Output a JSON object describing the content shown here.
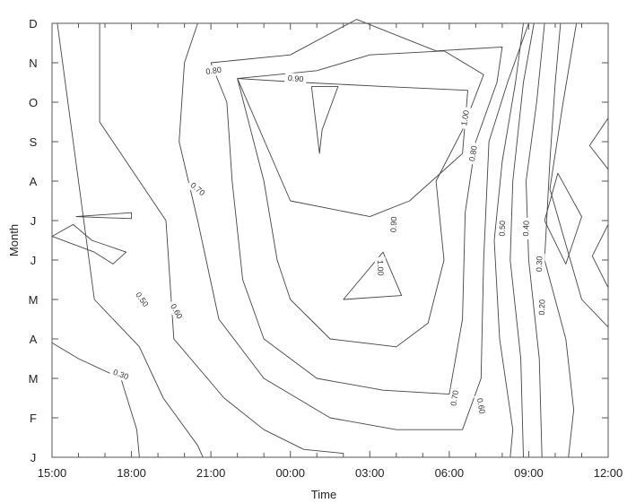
{
  "chart_data": {
    "type": "contour",
    "xlabel": "Time",
    "ylabel": "Month",
    "x_ticks": [
      "15:00",
      "18:00",
      "21:00",
      "00:00",
      "03:00",
      "06:00",
      "09:00",
      "12:00"
    ],
    "x_range": [
      0,
      21
    ],
    "y_ticks": [
      "J",
      "F",
      "M",
      "A",
      "M",
      "J",
      "J",
      "A",
      "S",
      "O",
      "N",
      "D"
    ],
    "y_range": [
      0,
      11
    ],
    "contours": [
      {
        "level": "0.30",
        "points": [
          [
            0,
            2.9
          ],
          [
            1,
            2.5
          ],
          [
            2.6,
            2
          ],
          [
            3.2,
            0.7
          ],
          [
            3.3,
            0
          ]
        ]
      },
      {
        "level": "0.50",
        "points": [
          [
            0.2,
            11
          ],
          [
            0.8,
            8
          ],
          [
            1.6,
            4
          ],
          [
            3.3,
            2.8
          ],
          [
            4.2,
            1.5
          ],
          [
            5.5,
            0.3
          ],
          [
            5.7,
            0
          ]
        ]
      },
      {
        "level": "0.60",
        "points": [
          [
            1.8,
            11
          ],
          [
            1.8,
            8.5
          ],
          [
            4.3,
            6
          ],
          [
            4.6,
            3
          ],
          [
            6.5,
            1.5
          ],
          [
            8,
            0.7
          ],
          [
            9.5,
            0.2
          ],
          [
            11,
            0.1
          ]
        ]
      },
      {
        "level": "0.70",
        "points": [
          [
            5.5,
            11
          ],
          [
            5,
            10
          ],
          [
            4.8,
            8
          ],
          [
            5.5,
            6
          ],
          [
            6.3,
            3.5
          ],
          [
            8,
            2
          ],
          [
            10.5,
            1
          ],
          [
            13,
            0.7
          ],
          [
            15.5,
            0.7
          ],
          [
            16.2,
            2
          ],
          [
            16.3,
            5
          ],
          [
            16.5,
            8
          ],
          [
            17.2,
            9.5
          ],
          [
            18,
            11
          ]
        ]
      },
      {
        "level": "0.80",
        "points": [
          [
            6,
            10
          ],
          [
            6.6,
            9
          ],
          [
            6.8,
            7
          ],
          [
            7.2,
            4.5
          ],
          [
            8,
            3
          ],
          [
            10,
            2
          ],
          [
            12.5,
            1.7
          ],
          [
            15,
            1.6
          ],
          [
            15.5,
            3.5
          ],
          [
            15.6,
            6.2
          ],
          [
            16,
            8
          ],
          [
            16.8,
            9.5
          ],
          [
            17,
            10.4
          ],
          [
            14.5,
            10.3
          ],
          [
            11.5,
            11.1
          ],
          [
            9,
            10.2
          ],
          [
            6,
            10
          ]
        ]
      },
      {
        "level": "0.90",
        "points": [
          [
            7,
            9.6
          ],
          [
            8,
            7
          ],
          [
            8.5,
            5
          ],
          [
            9,
            4
          ],
          [
            10.5,
            3
          ],
          [
            13,
            2.8
          ],
          [
            14.2,
            3.4
          ],
          [
            14.8,
            5
          ],
          [
            14.5,
            7
          ],
          [
            15.5,
            8.3
          ],
          [
            16.3,
            9.7
          ],
          [
            14.8,
            10.3
          ],
          [
            12,
            10.2
          ],
          [
            10,
            9.8
          ],
          [
            7,
            9.6
          ]
        ]
      },
      {
        "level": "1.00",
        "points": [
          [
            7,
            9.6
          ],
          [
            9,
            6.5
          ],
          [
            12,
            6.1
          ],
          [
            13.5,
            6.5
          ],
          [
            15.5,
            7.7
          ],
          [
            15.7,
            9.3
          ],
          [
            12.5,
            9.4
          ],
          [
            9.5,
            9.5
          ],
          [
            7,
            9.6
          ]
        ]
      },
      {
        "level": "1.00",
        "points": [
          [
            9.8,
            9.4
          ],
          [
            10.8,
            9.4
          ],
          [
            10.2,
            8.3
          ],
          [
            10.1,
            7.7
          ],
          [
            9.8,
            9.4
          ]
        ]
      },
      {
        "level": "1.00",
        "points": [
          [
            11,
            4
          ],
          [
            12.5,
            5.2
          ],
          [
            13.2,
            4.1
          ],
          [
            11,
            4
          ]
        ]
      },
      {
        "level": "0.60",
        "points": [
          [
            17.8,
            11
          ],
          [
            17.5,
            9.5
          ],
          [
            17,
            7.5
          ],
          [
            16.7,
            5.5
          ],
          [
            16.9,
            3
          ],
          [
            17.4,
            0.7
          ],
          [
            17.3,
            0
          ]
        ]
      },
      {
        "level": "0.50",
        "points": [
          [
            18.2,
            11
          ],
          [
            17.8,
            9.5
          ],
          [
            17.4,
            7
          ],
          [
            17.3,
            5
          ],
          [
            17.7,
            2.5
          ],
          [
            17.8,
            0
          ]
        ]
      },
      {
        "level": "0.40",
        "points": [
          [
            18.6,
            11
          ],
          [
            18.3,
            9
          ],
          [
            17.9,
            7
          ],
          [
            18,
            5
          ],
          [
            18.4,
            2.5
          ],
          [
            18.5,
            0
          ]
        ]
      },
      {
        "level": "0.30",
        "points": [
          [
            19.2,
            11
          ],
          [
            19,
            9.5
          ],
          [
            18.8,
            7.5
          ],
          [
            18.6,
            5
          ],
          [
            19.4,
            3
          ],
          [
            19.7,
            1.2
          ],
          [
            19.5,
            0
          ]
        ]
      },
      {
        "level": "0.20",
        "points": [
          [
            19.8,
            11
          ],
          [
            19.3,
            9
          ],
          [
            18.8,
            6.8
          ],
          [
            20,
            4
          ],
          [
            21,
            3.3
          ]
        ]
      },
      {
        "level": "",
        "points": [
          [
            18.6,
            6
          ],
          [
            19.1,
            7.2
          ],
          [
            20,
            6.1
          ],
          [
            19.4,
            4.9
          ],
          [
            18.6,
            6
          ]
        ]
      },
      {
        "level": "",
        "points": [
          [
            21,
            8.6
          ],
          [
            20.3,
            7.9
          ],
          [
            21,
            7.3
          ]
        ]
      },
      {
        "level": "",
        "points": [
          [
            21,
            5.9
          ],
          [
            20.4,
            5.1
          ],
          [
            21,
            4.3
          ]
        ]
      },
      {
        "level": "",
        "points": [
          [
            0.9,
            6.1
          ],
          [
            3,
            6.05
          ],
          [
            3,
            6.2
          ],
          [
            0.9,
            6.1
          ]
        ]
      },
      {
        "level": "",
        "points": [
          [
            0,
            5.6
          ],
          [
            0.8,
            5.9
          ],
          [
            1.5,
            5.5
          ],
          [
            2.8,
            5.2
          ],
          [
            2.3,
            4.9
          ],
          [
            1.6,
            5.2
          ],
          [
            0,
            5.6
          ]
        ]
      }
    ],
    "labels": [
      {
        "text": "0.80",
        "x": 6.1,
        "y": 9.8,
        "angle": -8
      },
      {
        "text": "0.90",
        "x": 9.2,
        "y": 9.6,
        "angle": 5
      },
      {
        "text": "1.00",
        "x": 15.6,
        "y": 8.6,
        "angle": -80
      },
      {
        "text": "0.80",
        "x": 15.9,
        "y": 7.7,
        "angle": -80
      },
      {
        "text": "0.70",
        "x": 5.5,
        "y": 6.8,
        "angle": 40
      },
      {
        "text": "0.90",
        "x": 12.9,
        "y": 5.9,
        "angle": -88
      },
      {
        "text": "1.00",
        "x": 12.4,
        "y": 4.8,
        "angle": 88
      },
      {
        "text": "0.50",
        "x": 3.4,
        "y": 4.0,
        "angle": 55
      },
      {
        "text": "0.60",
        "x": 4.7,
        "y": 3.7,
        "angle": 60
      },
      {
        "text": "0.30",
        "x": 2.6,
        "y": 2.1,
        "angle": 20
      },
      {
        "text": "0.50",
        "x": 17.0,
        "y": 5.8,
        "angle": -88
      },
      {
        "text": "0.40",
        "x": 17.9,
        "y": 5.8,
        "angle": -88
      },
      {
        "text": "0.30",
        "x": 18.4,
        "y": 4.9,
        "angle": -88
      },
      {
        "text": "0.20",
        "x": 18.5,
        "y": 3.8,
        "angle": -88
      },
      {
        "text": "0.70",
        "x": 15.2,
        "y": 1.5,
        "angle": -80
      },
      {
        "text": "0.60",
        "x": 16.2,
        "y": 1.3,
        "angle": 80
      }
    ]
  }
}
